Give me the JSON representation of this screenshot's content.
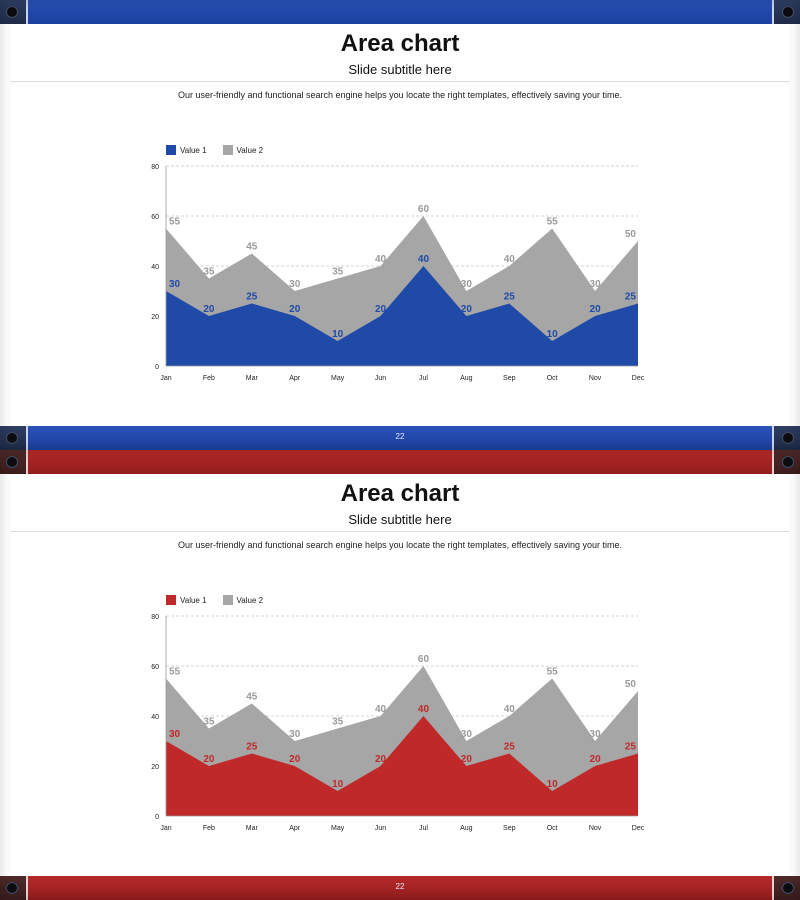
{
  "colors": {
    "gray": "#a6a6a6",
    "gray_label": "#9a9a9a"
  },
  "slides": [
    {
      "theme": "blue",
      "title": "Area chart",
      "subtitle": "Slide subtitle here",
      "description": "Our user-friendly and functional search engine helps you locate the right templates, effectively saving your time.",
      "page_number": "22",
      "series_color": "#1f4aa8",
      "label_color": "#1f4aa8"
    },
    {
      "theme": "red",
      "title": "Area chart",
      "subtitle": "Slide subtitle here",
      "description": "Our user-friendly and functional search engine helps you locate the right templates, effectively saving your time.",
      "page_number": "22",
      "series_color": "#c0292a",
      "label_color": "#c0292a"
    }
  ],
  "chart_data": [
    {
      "type": "area",
      "categories": [
        "Jan",
        "Feb",
        "Mar",
        "Apr",
        "May",
        "Jun",
        "Jul",
        "Aug",
        "Sep",
        "Oct",
        "Nov",
        "Dec"
      ],
      "series": [
        {
          "name": "Value 1",
          "values": [
            30,
            20,
            25,
            20,
            10,
            20,
            40,
            20,
            25,
            10,
            20,
            25
          ]
        },
        {
          "name": "Value 2",
          "values": [
            55,
            35,
            45,
            30,
            35,
            40,
            60,
            30,
            40,
            55,
            30,
            50
          ]
        }
      ],
      "ylim": [
        0,
        80
      ],
      "yticks": [
        0,
        20,
        40,
        60,
        80
      ],
      "grid": true,
      "legend": "top-left"
    },
    {
      "type": "area",
      "categories": [
        "Jan",
        "Feb",
        "Mar",
        "Apr",
        "May",
        "Jun",
        "Jul",
        "Aug",
        "Sep",
        "Oct",
        "Nov",
        "Dec"
      ],
      "series": [
        {
          "name": "Value 1",
          "values": [
            30,
            20,
            25,
            20,
            10,
            20,
            40,
            20,
            25,
            10,
            20,
            25
          ]
        },
        {
          "name": "Value 2",
          "values": [
            55,
            35,
            45,
            30,
            35,
            40,
            60,
            30,
            40,
            55,
            30,
            50
          ]
        }
      ],
      "ylim": [
        0,
        80
      ],
      "yticks": [
        0,
        20,
        40,
        60,
        80
      ],
      "grid": true,
      "legend": "top-left"
    }
  ]
}
